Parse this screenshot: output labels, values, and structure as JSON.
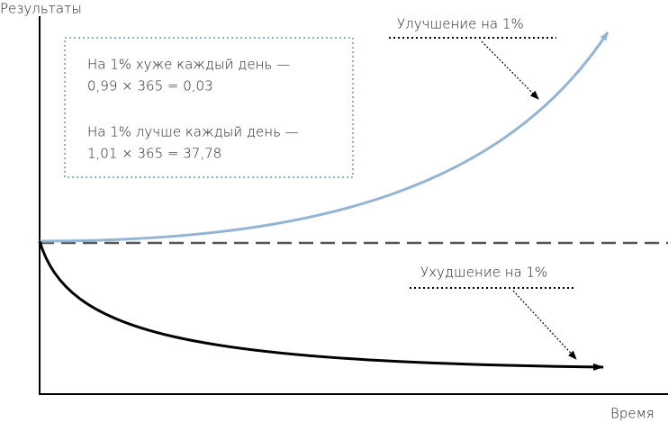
{
  "axes": {
    "y_label": "Результаты",
    "x_label": "Время"
  },
  "box": {
    "lines": [
      "На 1% хуже каждый день —",
      "0,99 × 365 = 0,03",
      "На 1% лучше каждый день —",
      "1,01 × 365 = 37,78"
    ]
  },
  "labels": {
    "upper": "Улучшение на 1%",
    "lower": "Ухудшение на 1%"
  }
}
